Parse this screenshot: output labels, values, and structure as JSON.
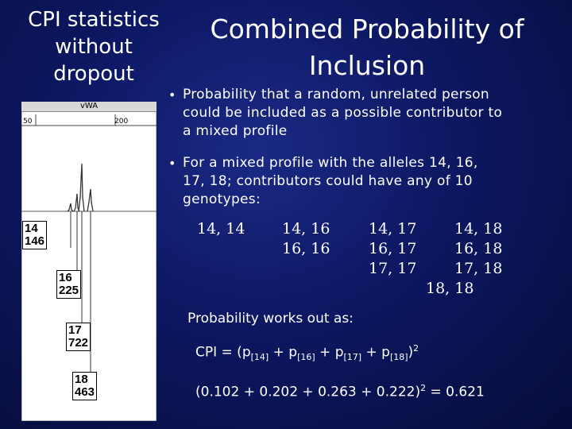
{
  "left_title": [
    "CPI statistics",
    "without",
    "dropout"
  ],
  "title": [
    "Combined Probability of",
    "Inclusion"
  ],
  "bullets": [
    {
      "lines": [
        "Probability that a random, unrelated person",
        "could be included as a possible contributor to",
        "a mixed profile"
      ]
    },
    {
      "lines": [
        "For a mixed profile with the alleles 14, 16,",
        "17, 18; contributors could have any of 10",
        "genotypes:"
      ]
    }
  ],
  "genotypes": {
    "col1": [
      "14, 14"
    ],
    "col2": [
      "14, 16",
      "16, 16"
    ],
    "col3": [
      "14, 17",
      "16, 17",
      "17, 17"
    ],
    "col4": [
      "14, 18",
      "16, 18",
      "17, 18",
      "18, 18"
    ]
  },
  "probability_label": "Probability works out as:",
  "cpi_formula": {
    "prefix": "CPI = (p",
    "s1": "[14]",
    "plus1": " + p",
    "s2": "[16]",
    "plus2": " + p",
    "s3": "[17]",
    "plus3": " + p",
    "s4": "[18]",
    "close": ")",
    "exp": "2"
  },
  "cpi_calc": {
    "expr": "(0.102 + 0.202 + 0.263 + 0.222)",
    "exp": "2",
    "result": " = 0.621"
  },
  "electropherogram": {
    "locus": "vWA",
    "axis_ticks": [
      "50",
      "200"
    ],
    "alleles": [
      {
        "allele": "14",
        "height": "146"
      },
      {
        "allele": "16",
        "height": "225"
      },
      {
        "allele": "17",
        "height": "722"
      },
      {
        "allele": "18",
        "height": "463"
      }
    ]
  }
}
